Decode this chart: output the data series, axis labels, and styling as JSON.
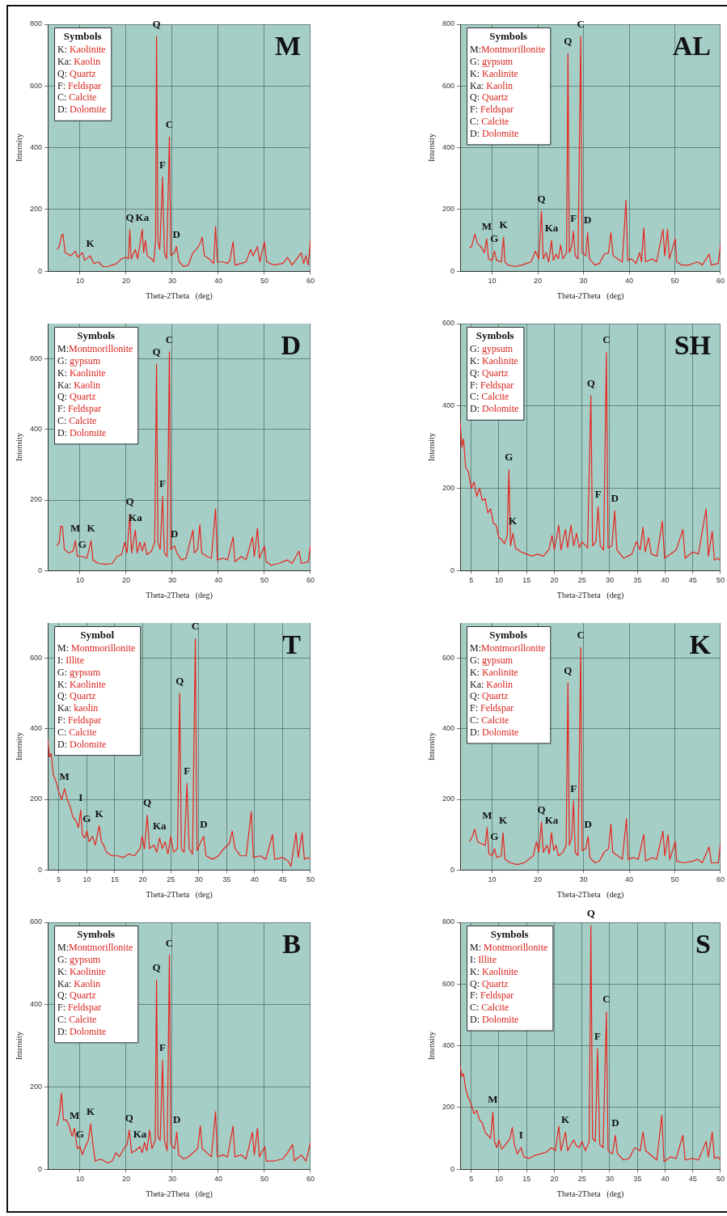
{
  "chart_data": [
    {
      "type": "line",
      "title": "M",
      "xlabel": "Theta-2Theta   (deg)",
      "ylabel": "Intensity",
      "color": "#e8251f",
      "grid": true,
      "xlim": [
        3,
        60
      ],
      "xticks": [
        10,
        20,
        30,
        40,
        50,
        60
      ],
      "ylim": [
        0,
        800
      ],
      "yticks": [
        0,
        200,
        400,
        600,
        800
      ],
      "x": [
        5,
        5.5,
        6,
        6.3,
        6.8,
        8,
        9,
        9.5,
        10.5,
        11,
        12.2,
        13,
        14,
        15,
        16,
        17,
        18,
        19,
        20,
        20.5,
        20.8,
        21.1,
        22,
        22.5,
        23.5,
        23.8,
        24.2,
        24.6,
        25.5,
        26,
        26.4,
        26.6,
        26.9,
        27.3,
        27.9,
        28.3,
        28.8,
        29.4,
        29.7,
        30.5,
        30.9,
        31.5,
        32.5,
        33.5,
        34.5,
        35.5,
        36.2,
        36.5,
        37,
        38,
        39,
        39.4,
        39.8,
        41,
        42,
        42.5,
        43.2,
        43.6,
        45,
        46,
        47,
        47.5,
        48.5,
        49,
        50,
        50.5,
        52,
        54,
        55,
        56,
        58,
        58.5,
        59,
        59.5,
        60
      ],
      "values": [
        70,
        80,
        115,
        120,
        60,
        50,
        65,
        45,
        60,
        35,
        50,
        25,
        30,
        15,
        15,
        20,
        25,
        40,
        45,
        40,
        135,
        40,
        70,
        40,
        135,
        60,
        100,
        50,
        40,
        30,
        100,
        760,
        100,
        70,
        305,
        60,
        40,
        435,
        50,
        60,
        80,
        30,
        15,
        20,
        60,
        75,
        95,
        110,
        50,
        40,
        25,
        145,
        30,
        30,
        25,
        35,
        95,
        20,
        25,
        30,
        70,
        50,
        80,
        30,
        95,
        30,
        20,
        25,
        45,
        20,
        60,
        25,
        50,
        20,
        100
      ],
      "annotations": [
        "Symbols",
        "K: Kaolinite",
        "Ka: Kaolin",
        "Q: Quartz",
        "F: Feldspar",
        "C: Calcite",
        "D: Dolomite",
        {
          "text": "K",
          "x": 12.2,
          "y": 50
        },
        {
          "text": "Q",
          "x": 20.8,
          "y": 135
        },
        {
          "text": "Ka",
          "x": 23.5,
          "y": 135
        },
        {
          "text": "Q",
          "x": 26.6,
          "y": 760
        },
        {
          "text": "F",
          "x": 27.9,
          "y": 305
        },
        {
          "text": "C",
          "x": 29.4,
          "y": 435
        },
        {
          "text": "D",
          "x": 30.9,
          "y": 80
        }
      ]
    },
    {
      "type": "line",
      "title": "AL",
      "xlabel": "Theta-2Theta   (deg)",
      "ylabel": "Intensity",
      "color": "#e8251f",
      "grid": true,
      "xlim": [
        3,
        60
      ],
      "xticks": [
        10,
        20,
        30,
        40,
        50,
        60
      ],
      "ylim": [
        0,
        800
      ],
      "yticks": [
        0,
        200,
        400,
        600,
        800
      ],
      "x": [
        5,
        5.5,
        6.2,
        6.8,
        7.5,
        8.3,
        8.8,
        9.2,
        10,
        10.5,
        11,
        12,
        12.5,
        12.8,
        13.5,
        15,
        16.5,
        17.5,
        18.5,
        19.5,
        20.2,
        20.8,
        21.2,
        21.8,
        22.4,
        23,
        23.4,
        24,
        24.5,
        25,
        25.5,
        26.3,
        26.6,
        26.9,
        27.4,
        27.8,
        28.2,
        28.8,
        29.4,
        29.7,
        30.5,
        30.9,
        31.3,
        32.5,
        33.5,
        34.5,
        35.5,
        36,
        36.5,
        37.5,
        38.5,
        39.3,
        39.7,
        40.5,
        41.5,
        42.3,
        42.7,
        43.2,
        43.6,
        45,
        46,
        47.4,
        47.8,
        48.4,
        48.8,
        50.1,
        50.4,
        51.5,
        53,
        55,
        56,
        57.5,
        58,
        59.5,
        60
      ],
      "values": [
        75,
        80,
        120,
        90,
        80,
        60,
        105,
        40,
        35,
        65,
        35,
        30,
        110,
        30,
        20,
        15,
        20,
        25,
        30,
        65,
        40,
        195,
        40,
        60,
        30,
        100,
        35,
        55,
        40,
        85,
        40,
        60,
        705,
        60,
        80,
        130,
        50,
        40,
        760,
        60,
        50,
        125,
        40,
        20,
        25,
        55,
        60,
        125,
        50,
        40,
        30,
        230,
        35,
        40,
        25,
        60,
        30,
        140,
        30,
        40,
        30,
        135,
        50,
        135,
        40,
        105,
        30,
        20,
        20,
        30,
        20,
        55,
        20,
        25,
        85
      ],
      "annotations": [
        "Symbols",
        "M:Montmorillonite",
        "G: gypsum",
        "K: Kaolinite",
        "Ka: Kaolin",
        "Q: Quartz",
        "F: Feldspar",
        "C: Calcite",
        "D: Dolomite",
        {
          "text": "M",
          "x": 8.8,
          "y": 105
        },
        {
          "text": "G",
          "x": 10.5,
          "y": 65
        },
        {
          "text": "K",
          "x": 12.5,
          "y": 110
        },
        {
          "text": "Q",
          "x": 20.8,
          "y": 195
        },
        {
          "text": "Ka",
          "x": 23,
          "y": 100
        },
        {
          "text": "Q",
          "x": 26.6,
          "y": 705
        },
        {
          "text": "F",
          "x": 27.8,
          "y": 130
        },
        {
          "text": "C",
          "x": 29.4,
          "y": 760
        },
        {
          "text": "D",
          "x": 30.9,
          "y": 125
        }
      ]
    },
    {
      "type": "line",
      "title": "D",
      "xlabel": "Theta-2Theta   (deg)",
      "ylabel": "Intensity",
      "color": "#e8251f",
      "grid": true,
      "xlim": [
        3,
        60
      ],
      "xticks": [
        10,
        20,
        30,
        40,
        50,
        60
      ],
      "ylim": [
        0,
        700
      ],
      "yticks": [
        0,
        200,
        400,
        600
      ],
      "x": [
        5,
        5.5,
        5.8,
        6.2,
        6.6,
        7.5,
        8.5,
        9,
        9.4,
        10.5,
        11.5,
        12.4,
        12.8,
        14,
        15.5,
        17,
        18,
        19,
        19.7,
        20.2,
        20.8,
        21.2,
        22,
        22.4,
        23,
        23.5,
        24,
        24.5,
        25.5,
        26.2,
        26.6,
        26.9,
        27.4,
        27.9,
        28.3,
        28.9,
        29.4,
        29.7,
        30.5,
        31,
        32,
        33,
        34.5,
        34.8,
        35.5,
        36,
        36.4,
        37.5,
        38.5,
        39.4,
        39.8,
        41,
        42,
        43.2,
        43.6,
        45,
        46,
        47.4,
        47.8,
        48.5,
        48.9,
        50,
        50.4,
        51.5,
        53,
        55,
        56,
        57.5,
        58,
        59.5,
        60
      ],
      "values": [
        70,
        80,
        125,
        125,
        60,
        50,
        55,
        85,
        40,
        40,
        35,
        85,
        30,
        20,
        18,
        20,
        40,
        45,
        80,
        50,
        160,
        50,
        115,
        50,
        80,
        55,
        80,
        45,
        55,
        80,
        585,
        80,
        60,
        210,
        50,
        40,
        620,
        60,
        70,
        50,
        30,
        35,
        115,
        50,
        60,
        130,
        50,
        40,
        35,
        175,
        30,
        35,
        30,
        95,
        25,
        40,
        30,
        95,
        40,
        120,
        35,
        70,
        25,
        15,
        20,
        30,
        20,
        55,
        20,
        25,
        70
      ],
      "annotations": [
        "Symbols",
        "M:Montmorillonite",
        "G: gypsum",
        "K: Kaolinite",
        "Ka: Kaolin",
        "Q: Quartz",
        "F: Feldspar",
        "C: Calcite",
        "D: Dolomite",
        {
          "text": "M",
          "x": 9,
          "y": 85
        },
        {
          "text": "G",
          "x": 10.5,
          "y": 40
        },
        {
          "text": "K",
          "x": 12.4,
          "y": 85
        },
        {
          "text": "Q",
          "x": 20.8,
          "y": 160
        },
        {
          "text": "Ka",
          "x": 22,
          "y": 115
        },
        {
          "text": "Q",
          "x": 26.6,
          "y": 585
        },
        {
          "text": "F",
          "x": 27.9,
          "y": 210
        },
        {
          "text": "C",
          "x": 29.4,
          "y": 620
        },
        {
          "text": "D",
          "x": 30.5,
          "y": 70
        }
      ]
    },
    {
      "type": "line",
      "title": "SH",
      "xlabel": "Theta-2Theta   (deg)",
      "ylabel": "Intensity",
      "color": "#e8251f",
      "grid": true,
      "xlim": [
        3,
        50
      ],
      "xticks": [
        5,
        10,
        15,
        20,
        25,
        30,
        35,
        40,
        45,
        50
      ],
      "ylim": [
        0,
        600
      ],
      "yticks": [
        0,
        200,
        400,
        600
      ],
      "x": [
        3,
        3.3,
        3.6,
        4,
        4.5,
        5,
        5.5,
        6,
        6.5,
        7,
        7.5,
        8,
        8.5,
        9,
        9.5,
        10,
        10.5,
        11,
        11.5,
        11.8,
        12.1,
        12.5,
        13,
        14,
        15,
        16,
        17,
        18,
        19,
        19.6,
        20,
        20.8,
        21.2,
        22,
        22.4,
        23,
        23.5,
        24,
        24.5,
        25,
        26,
        26.6,
        26.9,
        27.5,
        27.9,
        28.3,
        28.9,
        29.4,
        29.7,
        30.4,
        30.9,
        31.3,
        32.5,
        34,
        34.8,
        35.5,
        36,
        36.4,
        37,
        37.5,
        38.5,
        39.5,
        39.9,
        41,
        42,
        43.2,
        43.6,
        45,
        46,
        47.4,
        47.8,
        48.5,
        48.9,
        49.5,
        50
      ],
      "values": [
        365,
        300,
        320,
        250,
        240,
        200,
        215,
        180,
        200,
        170,
        175,
        140,
        150,
        115,
        110,
        80,
        75,
        65,
        85,
        245,
        60,
        90,
        55,
        45,
        40,
        35,
        40,
        35,
        50,
        85,
        50,
        110,
        50,
        100,
        55,
        110,
        60,
        90,
        55,
        70,
        55,
        425,
        60,
        70,
        155,
        60,
        50,
        530,
        55,
        60,
        145,
        50,
        30,
        40,
        70,
        50,
        105,
        45,
        80,
        40,
        35,
        120,
        30,
        40,
        50,
        100,
        30,
        45,
        40,
        150,
        35,
        95,
        25,
        30,
        25
      ],
      "annotations": [
        "Symbols",
        "G: gypsum",
        "K: Kaolinite",
        "Q: Quartz",
        "F: Feldspar",
        "C: Calcite",
        "D: Dolomite",
        {
          "text": "G",
          "x": 11.8,
          "y": 245
        },
        {
          "text": "K",
          "x": 12.5,
          "y": 90
        },
        {
          "text": "Q",
          "x": 26.6,
          "y": 425
        },
        {
          "text": "F",
          "x": 27.9,
          "y": 155
        },
        {
          "text": "C",
          "x": 29.4,
          "y": 530
        },
        {
          "text": "D",
          "x": 30.9,
          "y": 145
        }
      ]
    },
    {
      "type": "line",
      "title": "T",
      "xlabel": "Theta-2Theta   (deg)",
      "ylabel": "Intensity",
      "color": "#e8251f",
      "grid": true,
      "xlim": [
        3,
        50
      ],
      "xticks": [
        5,
        10,
        15,
        20,
        25,
        30,
        35,
        40,
        45,
        50
      ],
      "ylim": [
        0,
        700
      ],
      "yticks": [
        0,
        200,
        400,
        600
      ],
      "x": [
        3,
        3.3,
        3.6,
        4,
        4.5,
        5,
        5.5,
        6,
        6.5,
        7,
        7.5,
        8,
        8.5,
        8.9,
        9.2,
        9.6,
        10,
        10.4,
        11,
        11.5,
        12.2,
        12.6,
        13,
        13.5,
        14.5,
        15.5,
        16.5,
        17.5,
        18.5,
        19.5,
        19.9,
        20.3,
        20.8,
        21.2,
        22,
        22.5,
        23,
        23.5,
        24,
        24.5,
        25,
        25.5,
        26.2,
        26.6,
        26.9,
        27.4,
        27.9,
        28.3,
        28.9,
        29.4,
        29.7,
        30.4,
        30.9,
        31.3,
        32.5,
        33.5,
        34.5,
        35.5,
        36,
        36.5,
        37.5,
        38.5,
        39.4,
        39.8,
        41,
        42,
        43.2,
        43.6,
        45,
        46,
        46.5,
        47.4,
        47.8,
        48.5,
        48.9,
        49.5,
        50
      ],
      "values": [
        370,
        320,
        330,
        270,
        250,
        220,
        200,
        230,
        200,
        180,
        150,
        140,
        120,
        170,
        100,
        90,
        110,
        80,
        95,
        70,
        125,
        80,
        70,
        50,
        40,
        40,
        35,
        45,
        40,
        60,
        95,
        60,
        155,
        60,
        70,
        50,
        90,
        60,
        80,
        45,
        95,
        50,
        60,
        500,
        60,
        50,
        245,
        60,
        45,
        655,
        55,
        80,
        95,
        40,
        30,
        40,
        60,
        75,
        110,
        60,
        40,
        40,
        165,
        35,
        40,
        30,
        100,
        30,
        35,
        25,
        10,
        105,
        35,
        105,
        30,
        35,
        30
      ],
      "annotations": [
        "Symbol",
        "M: Montmorillonite",
        "I: Illite",
        "G: gypsum",
        "K: Kaolinite",
        "Q: Quartz",
        "Ka: kaolin",
        "F: Feldspar",
        "C: Calcite",
        "D: Dolomite",
        {
          "text": "M",
          "x": 6,
          "y": 230
        },
        {
          "text": "I",
          "x": 8.9,
          "y": 170
        },
        {
          "text": "G",
          "x": 10,
          "y": 110
        },
        {
          "text": "K",
          "x": 12.2,
          "y": 125
        },
        {
          "text": "Q",
          "x": 20.8,
          "y": 155
        },
        {
          "text": "Ka",
          "x": 23,
          "y": 90
        },
        {
          "text": "Q",
          "x": 26.6,
          "y": 500
        },
        {
          "text": "F",
          "x": 27.9,
          "y": 245
        },
        {
          "text": "C",
          "x": 29.4,
          "y": 655
        },
        {
          "text": "D",
          "x": 30.9,
          "y": 95
        }
      ]
    },
    {
      "type": "line",
      "title": "K",
      "xlabel": "Theta-2Theta   (deg)",
      "ylabel": "Intensity",
      "color": "#e8251f",
      "grid": true,
      "xlim": [
        3,
        60
      ],
      "xticks": [
        10,
        20,
        30,
        40,
        50,
        60
      ],
      "ylim": [
        0,
        700
      ],
      "yticks": [
        0,
        200,
        400,
        600
      ],
      "x": [
        5,
        5.5,
        6.2,
        6.8,
        7.5,
        8.5,
        8.9,
        9.3,
        10,
        10.5,
        11,
        12,
        12.4,
        12.8,
        14,
        15.5,
        17,
        18,
        19,
        19.7,
        20.2,
        20.8,
        21.2,
        22,
        22.5,
        23,
        23.5,
        24,
        24.5,
        25.5,
        26.2,
        26.6,
        26.9,
        27.4,
        27.8,
        28.2,
        28.8,
        29.4,
        29.7,
        30.5,
        31,
        31.4,
        32.5,
        33.5,
        34.5,
        35.5,
        36,
        36.4,
        37.5,
        38.5,
        39.4,
        39.8,
        41,
        42,
        43.2,
        43.6,
        45,
        46,
        47.4,
        47.8,
        48.5,
        48.9,
        50.1,
        50.4,
        52,
        54,
        55,
        56,
        57.5,
        58,
        59.5,
        60
      ],
      "values": [
        80,
        90,
        115,
        80,
        75,
        70,
        120,
        45,
        40,
        60,
        35,
        40,
        105,
        30,
        20,
        15,
        20,
        30,
        40,
        80,
        50,
        135,
        50,
        70,
        45,
        105,
        55,
        70,
        40,
        50,
        70,
        530,
        70,
        90,
        195,
        50,
        40,
        630,
        55,
        60,
        95,
        35,
        20,
        25,
        50,
        60,
        130,
        50,
        40,
        30,
        145,
        30,
        35,
        30,
        100,
        25,
        35,
        30,
        110,
        40,
        100,
        30,
        80,
        25,
        20,
        25,
        30,
        20,
        65,
        20,
        20,
        75
      ],
      "annotations": [
        "Symbols",
        "M:Montmorillonite",
        "G: gypsum",
        "K: Kaolinite",
        "Ka: Kaolin",
        "Q: Quartz",
        "F: Feldspar",
        "C: Calcite",
        "D: Dolomite",
        {
          "text": "M",
          "x": 8.9,
          "y": 120
        },
        {
          "text": "G",
          "x": 10.5,
          "y": 60
        },
        {
          "text": "K",
          "x": 12.4,
          "y": 105
        },
        {
          "text": "Q",
          "x": 20.8,
          "y": 135
        },
        {
          "text": "Ka",
          "x": 23,
          "y": 105
        },
        {
          "text": "Q",
          "x": 26.6,
          "y": 530
        },
        {
          "text": "F",
          "x": 27.8,
          "y": 195
        },
        {
          "text": "C",
          "x": 29.4,
          "y": 630
        },
        {
          "text": "D",
          "x": 31,
          "y": 95
        }
      ]
    },
    {
      "type": "line",
      "title": "B",
      "xlabel": "Theta-2Theta   (deg)",
      "ylabel": "Intensity",
      "color": "#e8251f",
      "grid": true,
      "xlim": [
        3,
        60
      ],
      "xticks": [
        10,
        20,
        30,
        40,
        50,
        60
      ],
      "ylim": [
        0,
        600
      ],
      "yticks": [
        0,
        200,
        400,
        600
      ],
      "x": [
        5,
        5.5,
        6,
        6.4,
        7,
        7.5,
        8.3,
        8.8,
        9.4,
        10,
        10.5,
        11,
        11.8,
        12.3,
        12.8,
        13.3,
        14.5,
        16,
        17,
        17.8,
        18.5,
        19.5,
        20.2,
        20.7,
        21.2,
        22,
        23,
        23.5,
        24,
        24.5,
        25.1,
        25.6,
        26.3,
        26.6,
        26.9,
        27.4,
        27.9,
        28.3,
        28.9,
        29.4,
        29.7,
        30.5,
        31,
        31.4,
        32.5,
        33.5,
        34.5,
        35.5,
        36.1,
        36.5,
        37.5,
        38.5,
        39.4,
        39.8,
        41,
        42,
        43.2,
        43.6,
        45,
        46,
        47.4,
        47.8,
        48.5,
        48.9,
        50.1,
        50.4,
        52,
        54,
        55,
        56.1,
        56.5,
        58,
        59,
        60
      ],
      "values": [
        105,
        130,
        185,
        120,
        120,
        110,
        80,
        100,
        50,
        55,
        35,
        50,
        70,
        110,
        60,
        20,
        25,
        15,
        20,
        40,
        30,
        50,
        60,
        95,
        40,
        45,
        55,
        40,
        65,
        45,
        95,
        50,
        70,
        460,
        80,
        70,
        265,
        70,
        45,
        520,
        60,
        50,
        90,
        35,
        25,
        30,
        40,
        50,
        105,
        50,
        40,
        30,
        140,
        30,
        35,
        30,
        105,
        30,
        35,
        25,
        90,
        35,
        100,
        30,
        55,
        20,
        20,
        25,
        40,
        60,
        20,
        35,
        20,
        65
      ],
      "annotations": [
        "Symbols",
        "M:Montmorillonite",
        "G: gypsum",
        "K: Kaolinite",
        "Ka: Kaolin",
        "Q: Quartz",
        "F: Feldspar",
        "C: Calcite",
        "D: Dolomite",
        {
          "text": "M",
          "x": 8.8,
          "y": 100
        },
        {
          "text": "G",
          "x": 10,
          "y": 55
        },
        {
          "text": "K",
          "x": 12.3,
          "y": 110
        },
        {
          "text": "Q",
          "x": 20.7,
          "y": 95
        },
        {
          "text": "Ka",
          "x": 23,
          "y": 55
        },
        {
          "text": "Q",
          "x": 26.6,
          "y": 460
        },
        {
          "text": "F",
          "x": 27.9,
          "y": 265
        },
        {
          "text": "C",
          "x": 29.4,
          "y": 520
        },
        {
          "text": "D",
          "x": 31,
          "y": 90
        }
      ]
    },
    {
      "type": "line",
      "title": "S",
      "xlabel": "Theta-2Theta   (deg)",
      "ylabel": "Intensity",
      "color": "#e8251f",
      "grid": true,
      "xlim": [
        3,
        50
      ],
      "xticks": [
        5,
        10,
        15,
        20,
        25,
        30,
        35,
        40,
        45,
        50
      ],
      "ylim": [
        0,
        800
      ],
      "yticks": [
        0,
        200,
        400,
        600,
        800
      ],
      "x": [
        3,
        3.3,
        3.6,
        4,
        4.5,
        5,
        5.5,
        6,
        6.5,
        7,
        7.5,
        8,
        8.5,
        8.9,
        9.2,
        9.6,
        10,
        10.5,
        11.2,
        12,
        12.4,
        12.8,
        13.3,
        14,
        14.5,
        15.5,
        16.5,
        17.5,
        18.5,
        19.5,
        20.2,
        20.8,
        21.2,
        22,
        22.4,
        23,
        23.5,
        24,
        24.5,
        25,
        25.6,
        26.3,
        26.6,
        26.9,
        27.4,
        27.8,
        28.2,
        28.8,
        29.4,
        29.7,
        30.5,
        31,
        31.4,
        32.5,
        33.5,
        34.5,
        35.5,
        36,
        36.5,
        37.5,
        38.5,
        39.4,
        39.8,
        41,
        42,
        43.2,
        43.6,
        45,
        46,
        47.4,
        47.8,
        48.5,
        48.9,
        49.5,
        50
      ],
      "values": [
        335,
        300,
        310,
        260,
        230,
        210,
        180,
        190,
        160,
        150,
        120,
        110,
        100,
        185,
        90,
        70,
        95,
        65,
        80,
        100,
        135,
        80,
        50,
        70,
        40,
        35,
        45,
        50,
        55,
        70,
        60,
        140,
        60,
        120,
        60,
        80,
        95,
        75,
        70,
        90,
        60,
        90,
        790,
        100,
        90,
        390,
        80,
        70,
        510,
        60,
        50,
        110,
        50,
        30,
        35,
        70,
        60,
        120,
        60,
        45,
        30,
        175,
        25,
        40,
        35,
        110,
        30,
        35,
        30,
        90,
        40,
        120,
        35,
        40,
        30
      ],
      "annotations": [
        "Symbols",
        "M: Montmorillonite",
        "I: Illite",
        "K: Kaolinite",
        "Q: Quartz",
        "F: Feldspar",
        "C: Calcite",
        "D: Dolomite",
        {
          "text": "M",
          "x": 8.9,
          "y": 185
        },
        {
          "text": "I",
          "x": 14,
          "y": 70
        },
        {
          "text": "K",
          "x": 22,
          "y": 120
        },
        {
          "text": "Q",
          "x": 26.6,
          "y": 790
        },
        {
          "text": "F",
          "x": 27.8,
          "y": 390
        },
        {
          "text": "C",
          "x": 29.4,
          "y": 510
        },
        {
          "text": "D",
          "x": 31,
          "y": 110
        }
      ]
    }
  ]
}
